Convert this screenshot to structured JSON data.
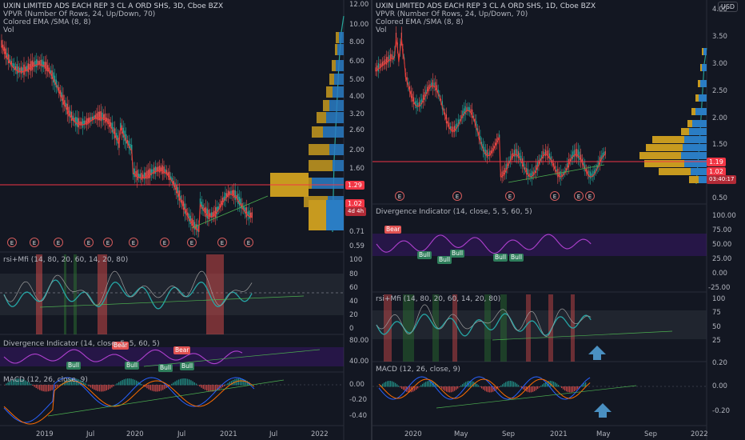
{
  "left": {
    "header": {
      "title": "UXIN LIMITED ADS EACH REP 3 CL A ORD SHS, 3D, Cboe BZX",
      "vpvr": "VPVR (Number Of Rows, 24, Up/Down, 70)",
      "ema": "Colored EMA /SMA (8, 8)",
      "vol": "Vol"
    },
    "price_axis": [
      "12.00",
      "10.00",
      "8.00",
      "6.00",
      "5.00",
      "4.00",
      "3.20",
      "2.60",
      "2.00",
      "1.60",
      "1.02",
      "0.71",
      "0.59"
    ],
    "price_tag": "1.29",
    "last_tag": "1.02",
    "countdown": "4d 4h",
    "rsi": {
      "title": "rsi+Mfi (14, 80, 20, 60, 14, 20, 80)",
      "axis": [
        "100",
        "80",
        "60",
        "40",
        "20",
        "0"
      ]
    },
    "divergence": {
      "title": "Divergence Indicator (14, close, 5, 5, 60, 5)",
      "axis": [
        "80.00",
        "40.00"
      ],
      "labels": [
        "Bear",
        "Bull",
        "Bull",
        "Bear",
        "Bull",
        "Bull"
      ]
    },
    "macd": {
      "title": "MACD (12, 26, close, 9)",
      "axis": [
        "0.00",
        "-0.20",
        "-0.40"
      ]
    },
    "time_axis": [
      "2019",
      "Jul",
      "2020",
      "Jul",
      "2021",
      "Jul",
      "2022"
    ],
    "earnings": [
      "E",
      "E",
      "E",
      "E",
      "E",
      "E",
      "E",
      "E",
      "E",
      "E"
    ]
  },
  "right": {
    "header": {
      "title": "UXIN LIMITED ADS EACH REP 3 CL A ORD SHS, 1D, Cboe BZX",
      "vpvr": "VPVR (Number Of Rows, 24, Up/Down, 70)",
      "ema": "Colored EMA /SMA (8, 8)",
      "vol": "Vol"
    },
    "currency": "USD",
    "price_axis": [
      "4.00",
      "3.50",
      "3.00",
      "2.50",
      "2.00",
      "1.50",
      "1.00",
      "0.50"
    ],
    "price_tag": "1.19",
    "last_tag": "1.02",
    "countdown": "03:40:17",
    "divergence": {
      "title": "Divergence Indicator (14, close, 5, 5, 60, 5)",
      "axis": [
        "100.00",
        "75.00",
        "50.00",
        "25.00",
        "0.00",
        "-25.00"
      ],
      "labels": [
        "Bear",
        "Bull",
        "Bull",
        "Bull",
        "Bull",
        "Bull"
      ]
    },
    "rsi": {
      "title": "rsi+Mfi (14, 80, 20, 60, 14, 20, 80)",
      "axis": [
        "100",
        "75",
        "50",
        "25"
      ]
    },
    "macd": {
      "title": "MACD (12, 26, close, 9)",
      "axis": [
        "0.20",
        "0.00",
        "-0.20"
      ]
    },
    "time_axis": [
      "2020",
      "May",
      "Sep",
      "2021",
      "May",
      "Sep",
      "2022"
    ],
    "earnings": [
      "E",
      "E",
      "E",
      "E",
      "E",
      "E"
    ]
  },
  "colors": {
    "up": "#26a69a",
    "down": "#ef5350",
    "red_line": "#f23645",
    "vp_up": "#2a7dc4",
    "vp_down": "#c79a1f",
    "rsi": "#26a6a6",
    "divergence": "#9c27b0",
    "bg": "#131722"
  }
}
